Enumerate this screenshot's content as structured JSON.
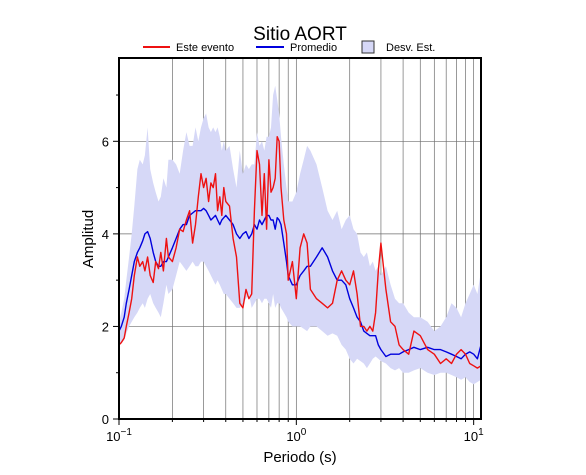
{
  "chart_data": {
    "type": "line",
    "title": "Sitio AORT",
    "xlabel": "Periodo (s)",
    "ylabel": "Amplitud",
    "x_scale": "log",
    "xlim": [
      0.1,
      11
    ],
    "ylim": [
      0,
      7.8
    ],
    "grid": true,
    "legend_position": "top",
    "x_ticks": [
      {
        "value": 0.1,
        "base": "10",
        "exp": "−1"
      },
      {
        "value": 1,
        "base": "10",
        "exp": "0"
      },
      {
        "value": 10,
        "base": "10",
        "exp": "1"
      }
    ],
    "y_ticks": [
      0,
      2,
      4,
      6
    ],
    "y_tick_labels": [
      "0",
      "2",
      "4",
      "6"
    ],
    "legend": {
      "event_label": "Este evento",
      "mean_label": "Promedio",
      "band_label": "Desv. Est."
    },
    "colors": {
      "event": "#ee1111",
      "mean": "#0000dd",
      "band_fill": "#d6d8f7",
      "band_stroke": "#333333"
    },
    "series": [
      {
        "name": "Este evento",
        "x": [
          0.1,
          0.103,
          0.107,
          0.11,
          0.114,
          0.118,
          0.122,
          0.127,
          0.131,
          0.136,
          0.14,
          0.145,
          0.15,
          0.156,
          0.161,
          0.167,
          0.172,
          0.178,
          0.185,
          0.19,
          0.2,
          0.21,
          0.22,
          0.23,
          0.24,
          0.25,
          0.26,
          0.27,
          0.28,
          0.29,
          0.3,
          0.31,
          0.32,
          0.33,
          0.34,
          0.35,
          0.36,
          0.37,
          0.38,
          0.39,
          0.4,
          0.42,
          0.44,
          0.46,
          0.48,
          0.5,
          0.52,
          0.54,
          0.56,
          0.58,
          0.6,
          0.62,
          0.64,
          0.66,
          0.68,
          0.7,
          0.72,
          0.74,
          0.76,
          0.78,
          0.8,
          0.82,
          0.85,
          0.88,
          0.9,
          0.95,
          1.0,
          1.05,
          1.1,
          1.15,
          1.2,
          1.3,
          1.4,
          1.5,
          1.6,
          1.7,
          1.8,
          1.9,
          2.0,
          2.1,
          2.2,
          2.3,
          2.4,
          2.5,
          2.6,
          2.7,
          2.8,
          2.9,
          3.0,
          3.2,
          3.4,
          3.6,
          3.8,
          4.0,
          4.3,
          4.6,
          5.0,
          5.5,
          6.0,
          6.5,
          7.0,
          7.5,
          8.0,
          8.5,
          9.0,
          9.5,
          10.0,
          10.5,
          11.0
        ],
        "values": [
          1.6,
          1.65,
          1.75,
          2.0,
          2.3,
          2.6,
          3.1,
          3.5,
          3.3,
          3.4,
          3.2,
          3.5,
          3.1,
          2.95,
          3.4,
          3.25,
          3.6,
          3.2,
          3.9,
          3.5,
          3.4,
          3.7,
          4.1,
          4.05,
          4.3,
          4.5,
          3.8,
          4.2,
          4.8,
          5.3,
          5.0,
          5.2,
          4.7,
          5.1,
          5.0,
          5.3,
          4.5,
          4.8,
          4.4,
          5.0,
          4.7,
          4.6,
          3.9,
          3.5,
          2.5,
          2.4,
          2.8,
          2.6,
          2.7,
          4.5,
          5.8,
          5.5,
          4.4,
          5.3,
          4.1,
          5.6,
          4.9,
          5.0,
          5.2,
          6.1,
          6.0,
          5.0,
          4.3,
          4.0,
          3.0,
          3.4,
          2.6,
          3.7,
          4.0,
          3.8,
          2.8,
          2.6,
          2.5,
          2.4,
          2.5,
          3.0,
          3.2,
          3.0,
          2.9,
          3.2,
          2.7,
          2.0,
          2.0,
          1.9,
          2.0,
          1.9,
          2.3,
          3.2,
          3.8,
          2.8,
          2.1,
          2.0,
          1.6,
          1.5,
          1.4,
          1.9,
          1.8,
          1.5,
          1.4,
          1.2,
          1.3,
          1.2,
          1.4,
          1.5,
          1.4,
          1.2,
          1.15,
          1.1,
          1.15
        ]
      },
      {
        "name": "Promedio",
        "x": [
          0.1,
          0.103,
          0.107,
          0.11,
          0.114,
          0.118,
          0.122,
          0.127,
          0.131,
          0.136,
          0.14,
          0.145,
          0.15,
          0.156,
          0.161,
          0.167,
          0.172,
          0.178,
          0.185,
          0.19,
          0.2,
          0.21,
          0.22,
          0.23,
          0.24,
          0.25,
          0.26,
          0.27,
          0.28,
          0.29,
          0.3,
          0.31,
          0.32,
          0.33,
          0.34,
          0.35,
          0.36,
          0.37,
          0.38,
          0.39,
          0.4,
          0.42,
          0.44,
          0.46,
          0.48,
          0.5,
          0.52,
          0.54,
          0.56,
          0.58,
          0.6,
          0.62,
          0.64,
          0.66,
          0.68,
          0.7,
          0.72,
          0.74,
          0.76,
          0.78,
          0.8,
          0.82,
          0.85,
          0.88,
          0.9,
          0.95,
          1.0,
          1.05,
          1.1,
          1.15,
          1.2,
          1.3,
          1.4,
          1.5,
          1.6,
          1.7,
          1.8,
          1.9,
          2.0,
          2.1,
          2.2,
          2.3,
          2.4,
          2.5,
          2.6,
          2.7,
          2.8,
          2.9,
          3.0,
          3.2,
          3.4,
          3.6,
          3.8,
          4.0,
          4.3,
          4.6,
          5.0,
          5.5,
          6.0,
          6.5,
          7.0,
          7.5,
          8.0,
          8.5,
          9.0,
          9.5,
          10.0,
          10.5,
          11.0
        ],
        "values": [
          1.9,
          2.0,
          2.2,
          2.5,
          2.8,
          3.1,
          3.4,
          3.6,
          3.7,
          3.85,
          4.0,
          4.05,
          3.9,
          3.6,
          3.4,
          3.3,
          3.3,
          3.4,
          3.4,
          3.5,
          3.7,
          3.9,
          4.1,
          4.2,
          4.2,
          4.4,
          4.45,
          4.5,
          4.5,
          4.5,
          4.55,
          4.5,
          4.4,
          4.3,
          4.35,
          4.4,
          4.3,
          4.2,
          4.3,
          4.35,
          4.4,
          4.3,
          4.2,
          4.0,
          3.9,
          4.0,
          4.05,
          3.9,
          4.0,
          4.2,
          4.1,
          4.3,
          4.2,
          4.3,
          4.4,
          4.4,
          4.3,
          4.3,
          4.1,
          4.35,
          4.3,
          4.2,
          3.8,
          3.4,
          3.1,
          2.9,
          2.9,
          3.1,
          3.2,
          3.3,
          3.3,
          3.5,
          3.7,
          3.5,
          3.2,
          3.0,
          3.0,
          2.9,
          2.6,
          2.4,
          2.2,
          2.1,
          1.9,
          1.85,
          1.8,
          1.8,
          1.8,
          1.6,
          1.5,
          1.35,
          1.4,
          1.4,
          1.4,
          1.45,
          1.5,
          1.55,
          1.5,
          1.55,
          1.5,
          1.5,
          1.45,
          1.4,
          1.35,
          1.3,
          1.4,
          1.45,
          1.4,
          1.3,
          1.6
        ]
      },
      {
        "name": "Desv. Est.",
        "x": [
          0.1,
          0.103,
          0.107,
          0.11,
          0.114,
          0.118,
          0.122,
          0.127,
          0.131,
          0.136,
          0.14,
          0.145,
          0.15,
          0.156,
          0.161,
          0.167,
          0.172,
          0.178,
          0.185,
          0.19,
          0.2,
          0.21,
          0.22,
          0.23,
          0.24,
          0.25,
          0.26,
          0.27,
          0.28,
          0.29,
          0.3,
          0.31,
          0.32,
          0.33,
          0.34,
          0.35,
          0.36,
          0.37,
          0.38,
          0.39,
          0.4,
          0.42,
          0.44,
          0.46,
          0.48,
          0.5,
          0.52,
          0.54,
          0.56,
          0.58,
          0.6,
          0.62,
          0.64,
          0.66,
          0.68,
          0.7,
          0.72,
          0.74,
          0.76,
          0.78,
          0.8,
          0.82,
          0.85,
          0.88,
          0.9,
          0.95,
          1.0,
          1.05,
          1.1,
          1.15,
          1.2,
          1.3,
          1.4,
          1.5,
          1.6,
          1.7,
          1.8,
          1.9,
          2.0,
          2.1,
          2.2,
          2.3,
          2.4,
          2.5,
          2.6,
          2.7,
          2.8,
          2.9,
          3.0,
          3.2,
          3.4,
          3.6,
          3.8,
          4.0,
          4.3,
          4.6,
          5.0,
          5.5,
          6.0,
          6.5,
          7.0,
          7.5,
          8.0,
          8.5,
          9.0,
          9.5,
          10.0,
          10.5,
          11.0
        ],
        "upper": [
          2.1,
          2.3,
          2.6,
          3.0,
          3.5,
          4.0,
          4.6,
          5.4,
          5.6,
          5.5,
          5.7,
          6.3,
          5.4,
          5.1,
          4.9,
          4.7,
          4.8,
          5.2,
          5.0,
          5.6,
          5.6,
          5.5,
          5.3,
          5.8,
          6.2,
          5.9,
          5.9,
          6.3,
          6.0,
          6.3,
          6.5,
          6.6,
          6.3,
          6.2,
          6.3,
          6.2,
          6.3,
          6.1,
          5.8,
          6.0,
          5.8,
          5.9,
          5.4,
          5.0,
          5.8,
          5.3,
          5.5,
          5.4,
          5.5,
          5.5,
          6.2,
          5.9,
          6.0,
          5.8,
          6.1,
          6.1,
          6.3,
          7.0,
          7.2,
          6.9,
          6.6,
          6.1,
          5.5,
          5.0,
          4.7,
          4.7,
          4.9,
          5.3,
          5.6,
          5.9,
          5.8,
          5.5,
          5.0,
          4.5,
          4.3,
          4.5,
          4.1,
          4.3,
          4.4,
          4.1,
          4.0,
          3.6,
          3.5,
          3.6,
          3.3,
          3.4,
          3.2,
          3.3,
          3.1,
          3.3,
          2.9,
          2.6,
          2.5,
          2.5,
          2.3,
          2.2,
          2.2,
          2.1,
          1.9,
          2.0,
          2.2,
          2.5,
          2.4,
          2.2,
          2.5,
          2.7,
          2.9,
          2.7,
          3.2
        ],
        "lower": [
          1.6,
          1.65,
          1.7,
          1.85,
          2.0,
          2.1,
          2.2,
          2.3,
          2.4,
          2.5,
          2.4,
          2.6,
          2.7,
          2.5,
          2.4,
          2.3,
          2.2,
          2.5,
          2.9,
          2.7,
          2.8,
          3.1,
          3.4,
          3.3,
          3.2,
          3.3,
          3.4,
          3.3,
          3.3,
          3.4,
          3.4,
          3.3,
          3.2,
          3.1,
          3.0,
          2.9,
          3.0,
          2.9,
          2.8,
          2.7,
          2.7,
          2.6,
          2.5,
          2.4,
          2.4,
          2.5,
          2.6,
          2.7,
          2.4,
          2.5,
          2.6,
          2.6,
          2.5,
          2.6,
          2.6,
          2.5,
          2.4,
          2.7,
          2.4,
          2.5,
          2.5,
          2.4,
          2.3,
          2.2,
          2.1,
          2.0,
          2.0,
          2.0,
          1.95,
          1.9,
          2.0,
          2.0,
          1.9,
          1.8,
          1.85,
          1.8,
          1.6,
          1.5,
          1.3,
          1.2,
          1.3,
          1.25,
          1.2,
          1.1,
          1.2,
          1.3,
          1.35,
          1.3,
          1.25,
          1.2,
          1.1,
          1.05,
          1.1,
          1.0,
          1.0,
          1.05,
          1.1,
          1.0,
          0.95,
          1.0,
          1.0,
          0.95,
          0.9,
          0.85,
          0.9,
          0.8,
          0.75,
          0.8,
          0.85
        ]
      }
    ]
  }
}
